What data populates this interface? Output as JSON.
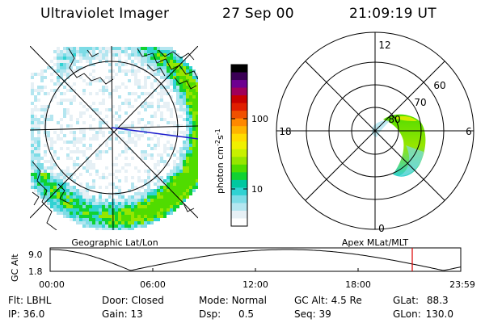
{
  "header": {
    "instrument": "Ultraviolet Imager",
    "date": "27 Sep 00",
    "time": "21:09:19 UT"
  },
  "panels": {
    "geo_label": "Geographic Lat/Lon",
    "apex_label": "Apex MLat/MLT"
  },
  "colorbar": {
    "label": "photon cm",
    "label_exp1": "-2",
    "label_s": "s",
    "label_exp2": "-1",
    "ticks": [
      "100",
      "10"
    ],
    "colors": [
      "#000000",
      "#3a0055",
      "#6e0090",
      "#a0005a",
      "#c80000",
      "#e01e00",
      "#f05000",
      "#ff8800",
      "#ffb400",
      "#ffdc00",
      "#f0f000",
      "#c8f000",
      "#96e600",
      "#50dc00",
      "#10d232",
      "#00c8a0",
      "#30d2d2",
      "#7ddce6",
      "#b4e6f0",
      "#e6f0f5",
      "#ffffff"
    ]
  },
  "polar": {
    "mlt_labels": [
      "12",
      "18",
      "6",
      "0"
    ],
    "lat_labels": [
      "60",
      "70",
      "80"
    ]
  },
  "altitude_plot": {
    "ylabel": "GC Alt",
    "yticks": [
      "9.0",
      "1.8"
    ],
    "xticks": [
      "00:00",
      "06:00",
      "12:00",
      "18:00",
      "23:59"
    ]
  },
  "footer": {
    "flt_label": "Flt:",
    "flt_value": "LBHL",
    "ip_label": "IP:",
    "ip_value": "36.0",
    "door_label": "Door:",
    "door_value": "Closed",
    "gain_label": "Gain:",
    "gain_value": "13",
    "mode_label": "Mode:",
    "mode_value": "Normal",
    "dsp_label": "Dsp:",
    "dsp_value": "0.5",
    "gcalt_label": "GC Alt:",
    "gcalt_value": "4.5 Re",
    "seq_label": "Seq:",
    "seq_value": "39",
    "glat_label": "GLat:",
    "glat_value": "88.3",
    "glon_label": "GLon:",
    "glon_value": "130.0"
  }
}
